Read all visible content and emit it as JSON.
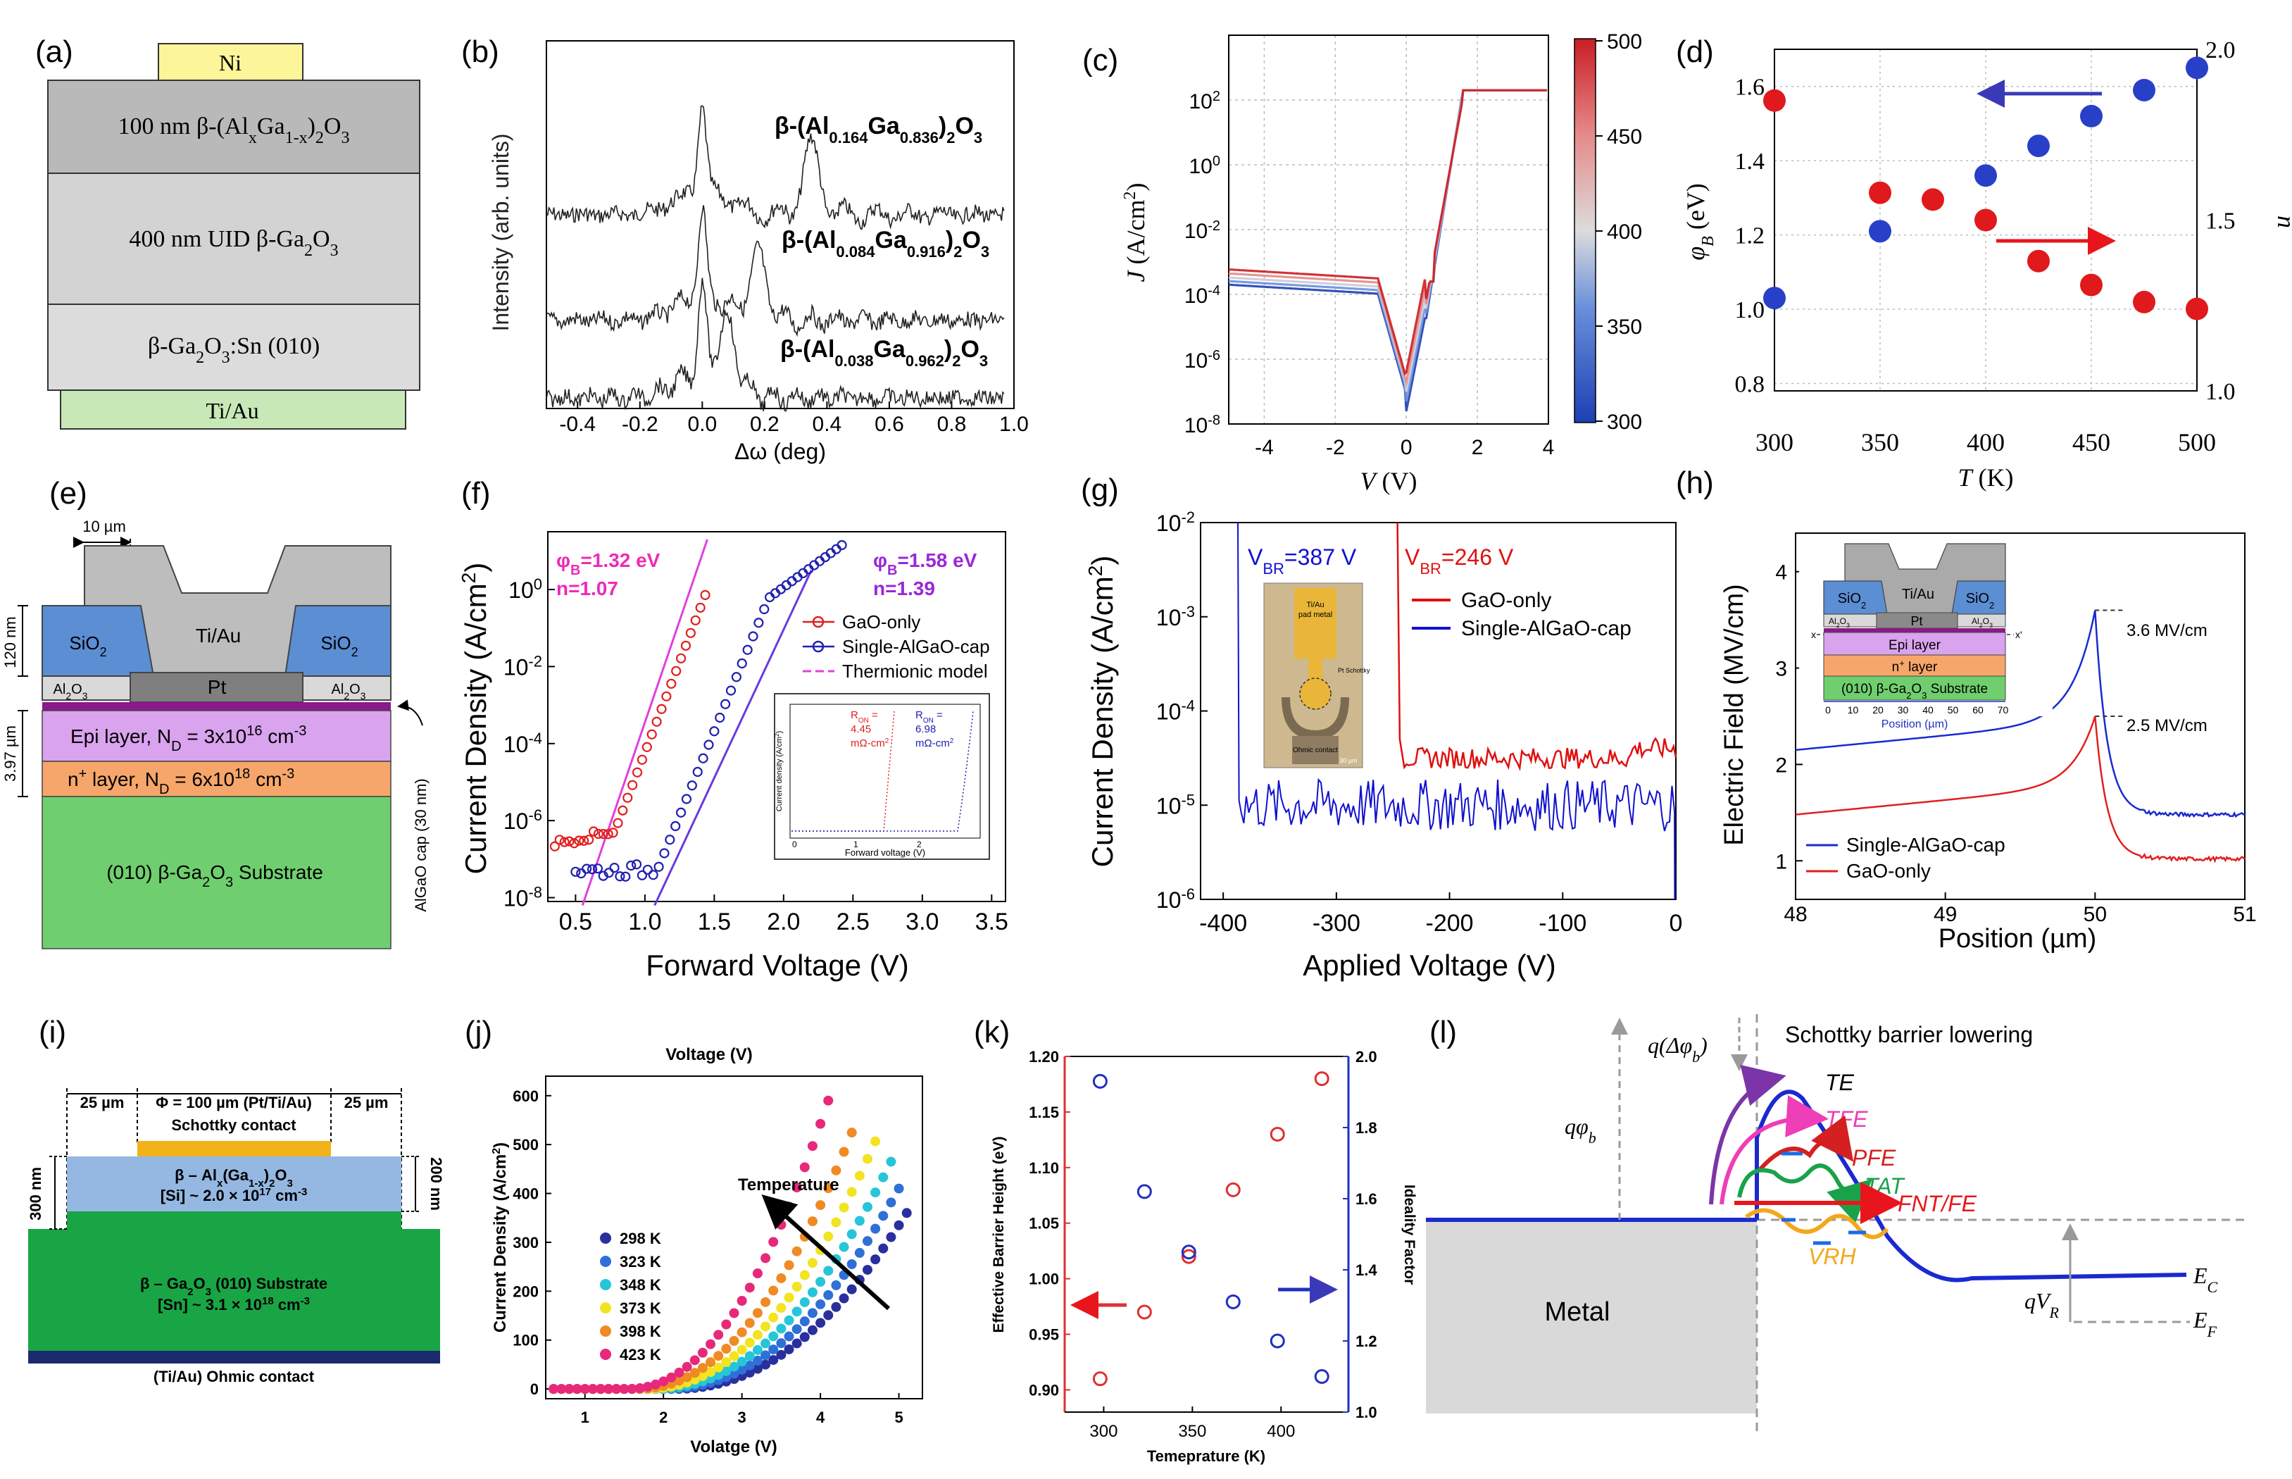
{
  "panels": {
    "a": {
      "label": "(a)",
      "layers": [
        "Ni",
        "100 nm β-(AlxGa1-x)2O3",
        "400 nm UID β-Ga2O3",
        "β-Ga2O3:Sn (010)",
        "Ti/Au"
      ],
      "layer_html": [
        "Ni",
        "100 nm β-(Al<tspan baseline-shift='sub' font-size='26'>x</tspan>Ga<tspan baseline-shift='sub' font-size='26'>1-x</tspan>)<tspan baseline-shift='sub' font-size='26'>2</tspan>O<tspan baseline-shift='sub' font-size='26'>3</tspan>"
      ],
      "colors": {
        "ni": "#fdf59a",
        "top": "#b9b9b9",
        "mid": "#d3d3d3",
        "sub": "#dcdcdc",
        "tiau": "#c9e8b8"
      }
    },
    "b": {
      "label": "(b)",
      "ylabel": "Intensity (arb. units)",
      "xlabel": "Δω (deg)",
      "xticks": [
        "-0.4",
        "-0.2",
        "0.0",
        "0.2",
        "0.4",
        "0.6",
        "0.8",
        "1.0"
      ],
      "curves": [
        {
          "name": "β-(Al0.164Ga0.836)2O3",
          "al": "0.164",
          "ga": "0.836"
        },
        {
          "name": "β-(Al0.084Ga0.916)2O3",
          "al": "0.084",
          "ga": "0.916"
        },
        {
          "name": "β-(Al0.038Ga0.962)2O3",
          "al": "0.038",
          "ga": "0.962"
        }
      ]
    },
    "c": {
      "label": "(c)",
      "ylabel": "J (A/cm2)",
      "xlabel": "V (V)",
      "xticks": [
        "-4",
        "-2",
        "0",
        "2",
        "4"
      ],
      "yticks": [
        "10^2",
        "10^0",
        "10^-2",
        "10^-4",
        "10^-6",
        "10^-8"
      ],
      "colorbar_ticks": [
        "500",
        "450",
        "400",
        "350",
        "300"
      ]
    },
    "d": {
      "label": "(d)",
      "ylabel_left": "φB (eV)",
      "ylabel_right": "n",
      "xlabel": "T (K)",
      "xticks": [
        "300",
        "350",
        "400",
        "450",
        "500"
      ],
      "yticks_left": [
        "1.6",
        "1.4",
        "1.2",
        "1.0",
        "0.8"
      ],
      "yticks_right": [
        "2.0",
        "1.5",
        "1.0"
      ]
    },
    "e": {
      "label": "(e)",
      "dim_10um": "10 µm",
      "dim_120nm": "120 nm",
      "dim_397um": "3.97 µm",
      "sio2": "SiO2",
      "tiau": "Ti/Au",
      "al2o3": "Al2O3",
      "pt": "Pt",
      "epi": "Epi layer, ND = 3x1016 cm-3",
      "nplus": "n+ layer, ND = 6x1018 cm-3",
      "substrate": "(010) β-Ga2O3 Substrate",
      "algao_cap": "AlGaO cap (30 nm)"
    },
    "f": {
      "label": "(f)",
      "ylabel": "Current Density (A/cm2)",
      "xlabel": "Forward Voltage (V)",
      "xticks": [
        "0.5",
        "1.0",
        "1.5",
        "2.0",
        "2.5",
        "3.0",
        "3.5"
      ],
      "yticks": [
        "10^0",
        "10^-2",
        "10^-4",
        "10^-6",
        "10^-8"
      ],
      "ann1": "φB=1.32 eV",
      "ann1b": "n=1.07",
      "ann2": "φB=1.58 eV",
      "ann2b": "n=1.39",
      "legend": [
        "GaO-only",
        "Single-AlGaO-cap",
        "Thermionic model"
      ],
      "inset": {
        "ylabel": "Current density (A/cm2)",
        "xlabel": "Forward voltage (V)",
        "ron1": "RON = 4.45 mΩ-cm2",
        "ron2": "RON = 6.98 mΩ-cm2"
      }
    },
    "g": {
      "label": "(g)",
      "ylabel": "Current Density (A/cm2)",
      "xlabel": "Applied Voltage (V)",
      "xticks": [
        "-400",
        "-300",
        "-200",
        "-100",
        "0"
      ],
      "yticks": [
        "10^-2",
        "10^-3",
        "10^-4",
        "10^-5",
        "10^-6"
      ],
      "vbr1": "VBR=387 V",
      "vbr2": "VBR=246 V",
      "legend": [
        "GaO-only",
        "Single-AlGaO-cap"
      ],
      "inset": [
        "Ti/Au pad metal",
        "Pt Schottky contact",
        "Ohmic contact",
        "30 µm"
      ]
    },
    "h": {
      "label": "(h)",
      "ylabel": "Electric Field (MV/cm)",
      "xlabel": "Position (µm)",
      "xticks": [
        "48",
        "49",
        "50",
        "51"
      ],
      "yticks": [
        "4",
        "3",
        "2",
        "1"
      ],
      "peak1": "3.6 MV/cm",
      "peak2": "2.5 MV/cm",
      "legend": [
        "Single-AlGaO-cap",
        "GaO-only"
      ],
      "inset": {
        "sio2": "SiO2",
        "tiau": "Ti/Au",
        "al2o3": "Al2O3",
        "pt": "Pt",
        "epi": "Epi layer",
        "nplus": "n+ layer",
        "sub": "(010) β-Ga2O3 Substrate",
        "axis": "Position (µm)",
        "ticks": [
          "0",
          "10",
          "20",
          "30",
          "40",
          "50",
          "60",
          "70"
        ],
        "x": "x",
        "xp": "x'"
      }
    },
    "i": {
      "label": "(i)",
      "dim_left": "25 µm",
      "dim_center": "Φ = 100 µm (Pt/Ti/Au)",
      "dim_right": "25 µm",
      "schottky": "Schottky contact",
      "al_layer": "β – Alx(Ga1-x)2O3",
      "al_doping": "[Si] ~ 2.0 × 1017 cm-3",
      "sub1": "β – Ga2O3 (010) Substrate",
      "sub2": "[Sn] ~ 3.1 × 1018 cm-3",
      "ohmic": "(Ti/Au) Ohmic contact",
      "dim_300": "300 nm",
      "dim_200": "200 nm"
    },
    "j": {
      "label": "(j)",
      "top_label": "Voltage (V)",
      "ylabel": "Current Density (A/cm2)",
      "xlabel": "Volatge (V)",
      "xticks": [
        "1",
        "2",
        "3",
        "4",
        "5"
      ],
      "yticks": [
        "600",
        "500",
        "400",
        "300",
        "200",
        "100",
        "0"
      ],
      "arrow_label": "Temperature",
      "legend": [
        "298 K",
        "323 K",
        "348 K",
        "373 K",
        "398 K",
        "423 K"
      ]
    },
    "k": {
      "label": "(k)",
      "ylabel_left": "Effective Barrier Height (eV)",
      "ylabel_right": "Ideality Factor",
      "xlabel": "Temeprature (K)",
      "xticks": [
        "300",
        "350",
        "400"
      ],
      "yticks_left": [
        "1.20",
        "1.15",
        "1.10",
        "1.05",
        "1.00",
        "0.95",
        "0.90"
      ],
      "yticks_right": [
        "2.0",
        "1.8",
        "1.6",
        "1.4",
        "1.2",
        "1.0"
      ]
    },
    "l": {
      "label": "(l)",
      "qdphi": "q(Δφb)",
      "sbl": "Schottky barrier lowering",
      "qphib": "qφb",
      "mech": [
        "TE",
        "TFE",
        "PFE",
        "TAT",
        "FNT/FE",
        "VRH"
      ],
      "metal": "Metal",
      "ec": "EC",
      "ef": "EF",
      "qvr": "qVR"
    }
  },
  "chart_data": [
    {
      "panel": "b",
      "type": "line",
      "title": "",
      "xlabel": "Δω (deg)",
      "ylabel": "Intensity (arb. units)",
      "xlim": [
        -0.5,
        1.0
      ],
      "series": [
        {
          "name": "β-(Al0.164Ga0.836)2O3",
          "peaks": [
            0.0,
            0.35
          ]
        },
        {
          "name": "β-(Al0.084Ga0.916)2O3",
          "peaks": [
            0.0,
            0.18
          ]
        },
        {
          "name": "β-(Al0.038Ga0.962)2O3",
          "peaks": [
            0.0,
            0.08
          ]
        }
      ]
    },
    {
      "panel": "c",
      "type": "line",
      "xlabel": "V (V)",
      "ylabel": "J (A/cm2)",
      "xlim": [
        -5,
        4
      ],
      "ylim_log10": [
        -8,
        4
      ],
      "series": [
        {
          "name": "300 K",
          "color": "#1d3fb3"
        },
        {
          "name": "350 K",
          "color": "#6a8fdb"
        },
        {
          "name": "400 K",
          "color": "#c8cbd8"
        },
        {
          "name": "450 K",
          "color": "#e58a8a"
        },
        {
          "name": "500 K",
          "color": "#c81e24"
        }
      ],
      "colorbar": {
        "min": 300,
        "max": 500
      }
    },
    {
      "panel": "d",
      "type": "scatter",
      "xlabel": "T (K)",
      "ylabel": "φB (eV)",
      "ylabel_right": "n",
      "xlim": [
        300,
        500
      ],
      "ylim": [
        0.78,
        1.7
      ],
      "ylim_right": [
        1.0,
        2.0
      ],
      "series": [
        {
          "name": "φB",
          "color": "#2840c8",
          "axis": "left",
          "x": [
            300,
            350,
            400,
            425,
            450,
            475,
            500
          ],
          "y": [
            1.03,
            1.21,
            1.36,
            1.44,
            1.52,
            1.59,
            1.65
          ]
        },
        {
          "name": "n",
          "color": "#e0191c",
          "axis": "right",
          "x": [
            300,
            350,
            375,
            400,
            425,
            450,
            475,
            500
          ],
          "y": [
            1.85,
            1.58,
            1.56,
            1.5,
            1.38,
            1.31,
            1.26,
            1.24
          ]
        }
      ]
    },
    {
      "panel": "f",
      "type": "scatter",
      "xlabel": "Forward Voltage (V)",
      "ylabel": "Current Density (A/cm2)",
      "xlim": [
        0.3,
        3.6
      ],
      "ylim_log10": [
        -8,
        1.5
      ],
      "series": [
        {
          "name": "GaO-only",
          "color": "#e02020",
          "phiB": 1.32,
          "n": 1.07,
          "onset": 0.8,
          "end": 1.45
        },
        {
          "name": "Single-AlGaO-cap",
          "color": "#2020b0",
          "phiB": 1.58,
          "n": 1.39,
          "onset": 1.1,
          "end": 2.45
        },
        {
          "name": "Thermionic model",
          "color": "#e040e0"
        }
      ]
    },
    {
      "panel": "g",
      "type": "line",
      "xlabel": "Applied Voltage (V)",
      "ylabel": "Current Density (A/cm2)",
      "xlim": [
        -420,
        0
      ],
      "ylim_log10": [
        -6,
        -2
      ],
      "series": [
        {
          "name": "GaO-only",
          "color": "#e01010",
          "breakdown": -246,
          "floor_log10": -4.5
        },
        {
          "name": "Single-AlGaO-cap",
          "color": "#1010d0",
          "breakdown": -387,
          "floor_log10": -5.0
        }
      ]
    },
    {
      "panel": "h",
      "type": "line",
      "xlabel": "Position (µm)",
      "ylabel": "Electric Field (MV/cm)",
      "xlim": [
        48,
        51
      ],
      "ylim": [
        0.6,
        4.4
      ],
      "series": [
        {
          "name": "Single-AlGaO-cap",
          "color": "#1a2ad0",
          "peak": 3.6,
          "peak_x": 50.0
        },
        {
          "name": "GaO-only",
          "color": "#e02020",
          "peak": 2.5,
          "peak_x": 50.0
        }
      ]
    },
    {
      "panel": "j",
      "type": "scatter",
      "xlabel": "Volatge (V)",
      "ylabel": "Current Density (A/cm2)",
      "xlim": [
        0.5,
        5.3
      ],
      "ylim": [
        -20,
        640
      ],
      "series": [
        {
          "name": "298 K",
          "color": "#2a2f9e",
          "vmax": 5.1,
          "jmax": 360
        },
        {
          "name": "323 K",
          "color": "#2f6fd8",
          "vmax": 5.0,
          "jmax": 410
        },
        {
          "name": "348 K",
          "color": "#26c6d8",
          "vmax": 4.9,
          "jmax": 465
        },
        {
          "name": "373 K",
          "color": "#f2e323",
          "vmax": 4.75,
          "jmax": 525
        },
        {
          "name": "398 K",
          "color": "#f08a24",
          "vmax": 4.45,
          "jmax": 545
        },
        {
          "name": "423 K",
          "color": "#e8287a",
          "vmax": 4.1,
          "jmax": 590
        }
      ]
    },
    {
      "panel": "k",
      "type": "scatter",
      "xlabel": "Temeprature (K)",
      "ylabel": "Effective Barrier Height (eV)",
      "ylabel_right": "Ideality Factor",
      "xlim": [
        278,
        438
      ],
      "ylim": [
        0.88,
        1.2
      ],
      "ylim_right": [
        1.0,
        2.0
      ],
      "series": [
        {
          "name": "Barrier height",
          "color": "#e03030",
          "axis": "left",
          "x": [
            298,
            323,
            348,
            373,
            398,
            423
          ],
          "y": [
            0.91,
            0.97,
            1.02,
            1.08,
            1.13,
            1.18
          ]
        },
        {
          "name": "Ideality factor",
          "color": "#2030c0",
          "axis": "right",
          "x": [
            298,
            323,
            348,
            373,
            398,
            423
          ],
          "y": [
            1.93,
            1.62,
            1.45,
            1.31,
            1.2,
            1.1
          ]
        }
      ]
    }
  ]
}
